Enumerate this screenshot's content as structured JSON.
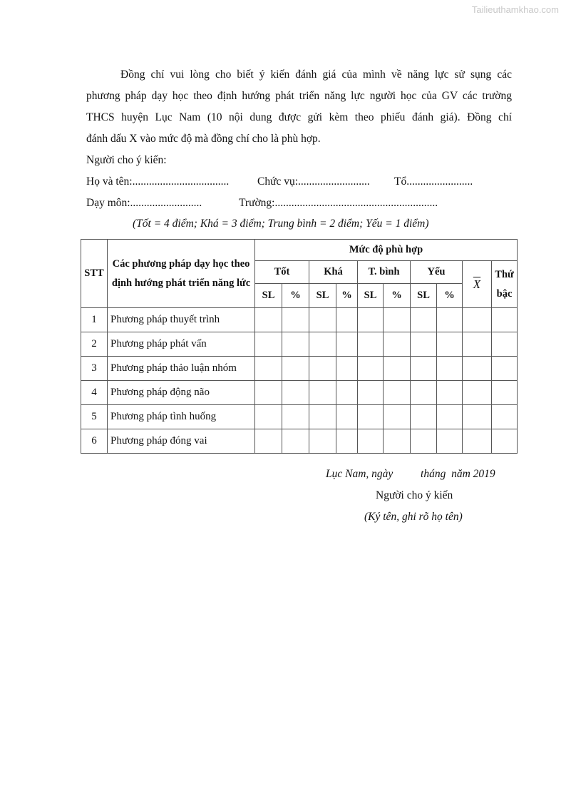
{
  "watermark": "Tailieuthamkhao.com",
  "intro": [
    "Đồng chí vui lòng cho biết ý kiến đánh giá của mình về năng lực sử sụng các",
    "phương pháp dạy học theo định hướng phát triển năng lực người học của GV các trường",
    "THCS huyện Lục Nam (10 nội dung được gửi kèm theo phiếu đánh giá). Đồng chí",
    "đánh dấu X vào mức độ mà đồng chí cho là phù hợp."
  ],
  "respondent_label": "Người cho ý kiến:",
  "fields": {
    "name": "Họ và tên:...................................",
    "position": "Chức vụ:..........................",
    "group": "Tổ........................",
    "subject": "Dạy môn:..........................",
    "school": "Trường:..........................................................."
  },
  "scale_note": "(Tốt = 4 điểm; Khá = 3 điểm; Trung bình = 2 điểm; Yếu = 1 điểm)",
  "table": {
    "headers": {
      "stt": "STT",
      "methods": "Các phương pháp dạy học theo định hướng phát triển năng lức",
      "level": "Mức độ phù hợp",
      "good": "Tốt",
      "fair": "Khá",
      "average": "T. bình",
      "weak": "Yếu",
      "mean": "X",
      "rank": "Thứ bậc",
      "sl": "SL",
      "pct": "%"
    },
    "rows": [
      {
        "stt": "1",
        "name": "Phương pháp thuyết trình"
      },
      {
        "stt": "2",
        "name": "Phương pháp phát vấn"
      },
      {
        "stt": "3",
        "name": "Phương pháp thảo luận nhóm"
      },
      {
        "stt": "4",
        "name": "Phương pháp động não"
      },
      {
        "stt": "5",
        "name": "Phương pháp tình huống"
      },
      {
        "stt": "6",
        "name": "Phương pháp đóng vai"
      }
    ]
  },
  "signature": {
    "place_date": "Lục Nam, ngày          tháng  năm 2019",
    "signer": "Người cho ý kiến",
    "instruction": "(Ký tên, ghi rõ họ tên)"
  }
}
